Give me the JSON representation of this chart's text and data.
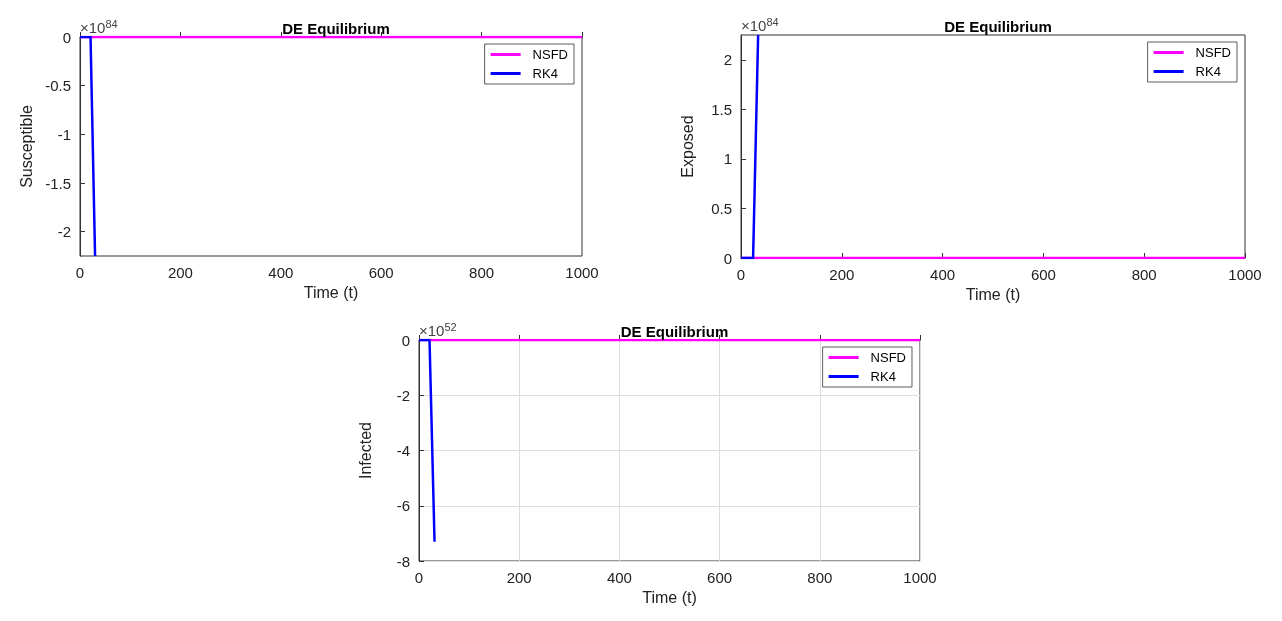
{
  "chart_data": [
    {
      "type": "line",
      "title": "DE Equilibrium",
      "xlabel": "Time (t)",
      "ylabel": "Susceptible",
      "annotations": [
        "×10$^{84}$"
      ],
      "xlim": [
        0,
        1000
      ],
      "xticks": [
        0,
        200,
        400,
        600,
        800,
        1000
      ],
      "ylim": [
        -2.25,
        0
      ],
      "yticks": [
        -2,
        -1.5,
        -1,
        -0.5,
        0
      ],
      "grid": false,
      "legend": "top right",
      "series": [
        {
          "name": "NSFD",
          "color": "#ff00ff",
          "x": [
            0,
            1000
          ],
          "values": [
            0,
            0
          ]
        },
        {
          "name": "RK4",
          "color": "#0000ff",
          "x": [
            0,
            21,
            30
          ],
          "values": [
            0,
            0,
            -2.25
          ]
        }
      ]
    },
    {
      "type": "line",
      "title": "DE Equilibrium",
      "xlabel": "Time (t)",
      "ylabel": "Exposed",
      "annotations": [
        "×10$^{84}$"
      ],
      "xlim": [
        0,
        1000
      ],
      "xticks": [
        0,
        200,
        400,
        600,
        800,
        1000
      ],
      "ylim": [
        0,
        2.25
      ],
      "yticks": [
        0,
        0.5,
        1,
        1.5,
        2
      ],
      "grid": false,
      "legend": "top right",
      "series": [
        {
          "name": "NSFD",
          "color": "#ff00ff",
          "x": [
            0,
            1000
          ],
          "values": [
            0,
            0
          ]
        },
        {
          "name": "RK4",
          "color": "#0000ff",
          "x": [
            0,
            24,
            34
          ],
          "values": [
            0,
            0,
            2.25
          ]
        }
      ]
    },
    {
      "type": "line",
      "title": "DE Equilibrium",
      "xlabel": "Time (t)",
      "ylabel": "Infected",
      "annotations": [
        "×10$^{52}$"
      ],
      "xlim": [
        0,
        1000
      ],
      "xticks": [
        0,
        200,
        400,
        600,
        800,
        1000
      ],
      "ylim": [
        -8,
        0
      ],
      "yticks": [
        -8,
        -6,
        -4,
        -2,
        0
      ],
      "grid": true,
      "legend": "top right",
      "series": [
        {
          "name": "NSFD",
          "color": "#ff00ff",
          "x": [
            0,
            1000
          ],
          "values": [
            0,
            0
          ]
        },
        {
          "name": "RK4",
          "color": "#0000ff",
          "x": [
            0,
            21,
            31
          ],
          "values": [
            0,
            0,
            -7.3
          ]
        }
      ]
    }
  ]
}
